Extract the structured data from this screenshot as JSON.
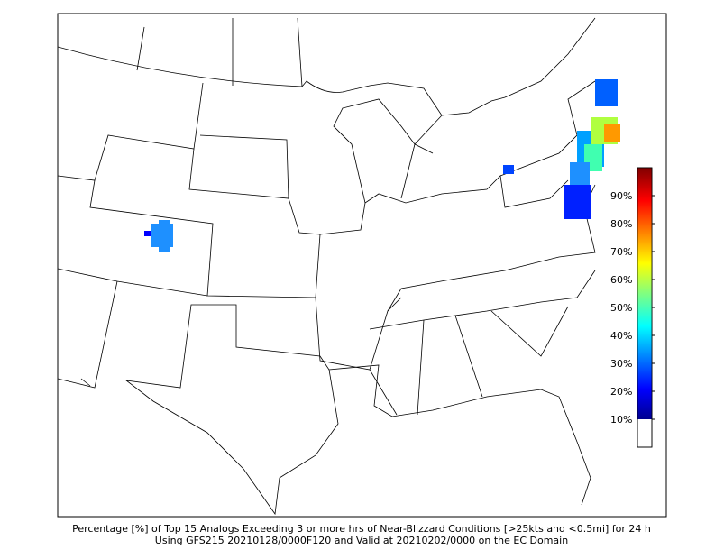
{
  "caption": [
    "Percentage [%] of Top 15 Analogs Exceeding 3 or more hrs of Near-Blizzard Conditions [>25kts and <0.5mi] for 24 h",
    "Using GFS215 20210128/0000F120 and Valid at 20210202/0000 on the EC Domain"
  ],
  "colorbar": {
    "lim": [
      0,
      100
    ],
    "ticks": [
      {
        "value": 10,
        "label": "10%"
      },
      {
        "value": 20,
        "label": "20%"
      },
      {
        "value": 30,
        "label": "30%"
      },
      {
        "value": 40,
        "label": "40%"
      },
      {
        "value": 50,
        "label": "50%"
      },
      {
        "value": 60,
        "label": "60%"
      },
      {
        "value": 70,
        "label": "70%"
      },
      {
        "value": 80,
        "label": "80%"
      },
      {
        "value": 90,
        "label": "90%"
      }
    ]
  }
}
